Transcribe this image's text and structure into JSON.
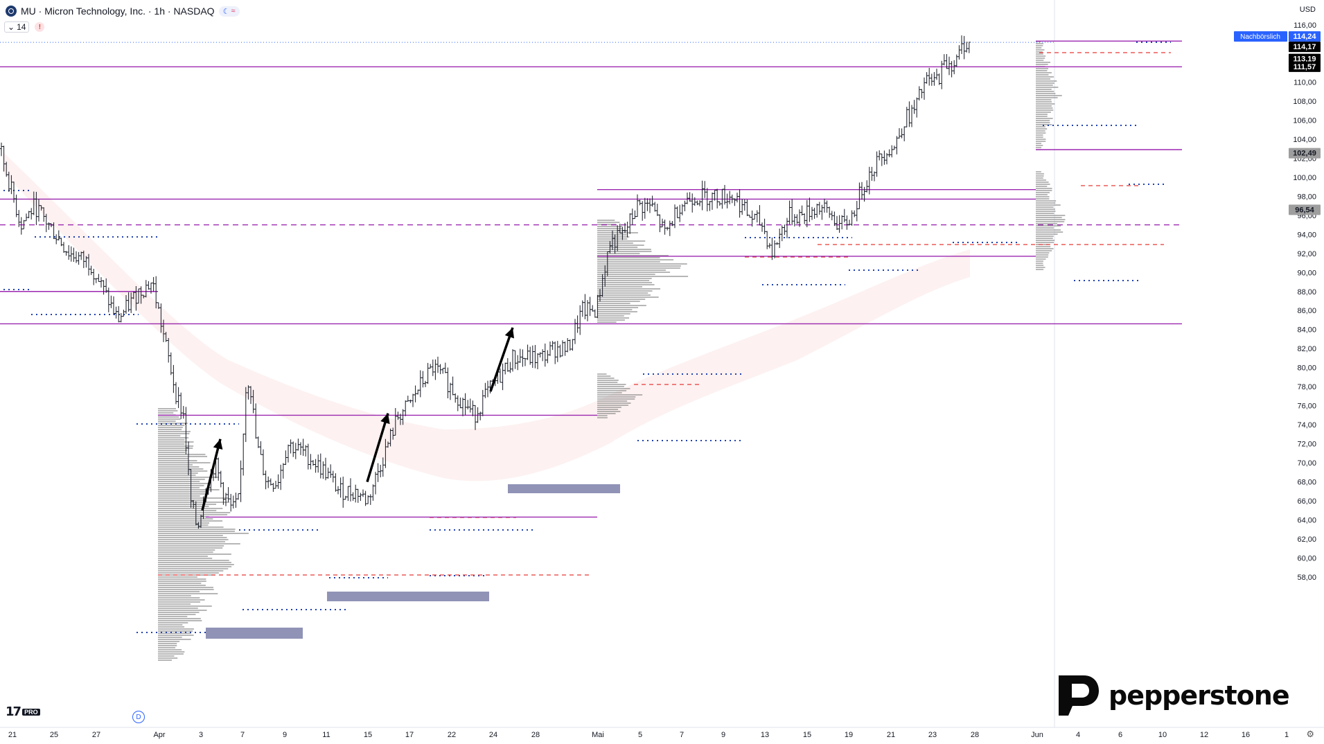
{
  "header": {
    "symbol": "MU",
    "title": "MU · Micron Technology, Inc. · 1h · NASDAQ",
    "indicator_count": "14"
  },
  "currency": "USD",
  "branding": {
    "pepperstone": "pepperstone",
    "tv_pro": "PRO",
    "badge": "D"
  },
  "price_labels": {
    "extended": {
      "text": "Nachbörslich",
      "value": "114,24",
      "color": "#2962ff"
    },
    "last": {
      "value": "114,17"
    },
    "last2": {
      "value": "113,19"
    },
    "level": {
      "value": "111,57"
    },
    "gray1": {
      "value": "102,49"
    },
    "gray2": {
      "value": "96,54"
    }
  },
  "chart_data": {
    "type": "candlestick",
    "timeframe": "1h",
    "y_ticks": [
      "58,00",
      "60,00",
      "62,00",
      "64,00",
      "66,00",
      "68,00",
      "70,00",
      "72,00",
      "74,00",
      "76,00",
      "78,00",
      "80,00",
      "82,00",
      "84,00",
      "86,00",
      "88,00",
      "90,00",
      "92,00",
      "94,00",
      "96,00",
      "98,00",
      "100,00",
      "102,00",
      "104,00",
      "106,00",
      "108,00",
      "110,00",
      "112,00",
      "114,00",
      "116,00"
    ],
    "ylim": [
      56.5,
      117.0
    ],
    "x_ticks": [
      "21",
      "25",
      "27",
      "Apr",
      "3",
      "7",
      "9",
      "11",
      "15",
      "17",
      "22",
      "24",
      "28",
      "Mai",
      "5",
      "7",
      "9",
      "13",
      "15",
      "19",
      "21",
      "23",
      "28",
      "Jun",
      "4",
      "6",
      "10",
      "12",
      "16",
      "1"
    ],
    "price_path": [
      [
        0,
        103.0
      ],
      [
        30,
        95
      ],
      [
        50,
        97
      ],
      [
        70,
        95
      ],
      [
        100,
        92
      ],
      [
        130,
        91
      ],
      [
        150,
        88
      ],
      [
        170,
        85
      ],
      [
        200,
        88
      ],
      [
        220,
        89
      ],
      [
        240,
        82
      ],
      [
        255,
        77
      ],
      [
        265,
        75
      ],
      [
        275,
        66
      ],
      [
        285,
        63
      ],
      [
        295,
        67
      ],
      [
        310,
        70
      ],
      [
        322,
        67
      ],
      [
        335,
        65
      ],
      [
        345,
        66
      ],
      [
        355,
        78
      ],
      [
        360,
        79
      ],
      [
        370,
        72
      ],
      [
        385,
        68
      ],
      [
        400,
        68
      ],
      [
        415,
        72
      ],
      [
        440,
        71
      ],
      [
        470,
        69
      ],
      [
        490,
        67
      ],
      [
        515,
        67
      ],
      [
        530,
        66
      ],
      [
        545,
        69
      ],
      [
        560,
        72
      ],
      [
        575,
        75
      ],
      [
        590,
        76
      ],
      [
        605,
        78
      ],
      [
        625,
        80
      ],
      [
        640,
        79
      ],
      [
        660,
        77
      ],
      [
        685,
        75
      ],
      [
        700,
        77
      ],
      [
        720,
        79
      ],
      [
        740,
        81
      ],
      [
        760,
        81
      ],
      [
        780,
        81
      ],
      [
        800,
        82
      ],
      [
        820,
        82
      ],
      [
        840,
        86
      ],
      [
        860,
        86
      ],
      [
        880,
        93
      ],
      [
        900,
        94
      ],
      [
        920,
        97
      ],
      [
        940,
        97
      ],
      [
        960,
        94
      ],
      [
        980,
        97
      ],
      [
        1000,
        98
      ],
      [
        1020,
        98
      ],
      [
        1040,
        98
      ],
      [
        1060,
        98
      ],
      [
        1080,
        96
      ],
      [
        1100,
        95
      ],
      [
        1115,
        92
      ],
      [
        1125,
        94
      ],
      [
        1140,
        96
      ],
      [
        1160,
        96
      ],
      [
        1180,
        97
      ],
      [
        1200,
        96
      ],
      [
        1210,
        95
      ],
      [
        1220,
        95
      ],
      [
        1230,
        96
      ],
      [
        1245,
        99
      ],
      [
        1260,
        101
      ],
      [
        1280,
        103
      ],
      [
        1290,
        103
      ],
      [
        1305,
        106
      ],
      [
        1320,
        107
      ],
      [
        1335,
        110
      ],
      [
        1350,
        110
      ],
      [
        1365,
        112
      ],
      [
        1380,
        112
      ],
      [
        1390,
        114
      ],
      [
        1400,
        114
      ]
    ],
    "horizontal_levels": [
      {
        "price": 114.3,
        "style": "solid",
        "color": "#9c27b0"
      },
      {
        "price": 111.6,
        "style": "solid",
        "color": "#9c27b0"
      },
      {
        "price": 102.9,
        "style": "solid",
        "color": "#9c27b0"
      },
      {
        "price": 98.7,
        "style": "solid",
        "color": "#9c27b0"
      },
      {
        "price": 97.7,
        "style": "solid",
        "color": "#9c27b0"
      },
      {
        "price": 95.0,
        "style": "dashed",
        "color": "#9c27b0"
      },
      {
        "price": 91.7,
        "style": "solid",
        "color": "#9c27b0"
      },
      {
        "price": 88.0,
        "style": "solid",
        "color": "#9c27b0"
      },
      {
        "price": 84.6,
        "style": "solid",
        "color": "#9c27b0"
      },
      {
        "price": 75.0,
        "style": "solid",
        "color": "#9c27b0"
      },
      {
        "price": 64.3,
        "style": "solid",
        "color": "#9c27b0"
      }
    ],
    "arrows": [
      {
        "from": [
          292,
          65
        ],
        "to": [
          318,
          72.5
        ]
      },
      {
        "from": [
          530,
          68
        ],
        "to": [
          560,
          75.2
        ]
      },
      {
        "from": [
          708,
          77.5
        ],
        "to": [
          740,
          84.2
        ]
      }
    ]
  },
  "colors": {
    "level": "#9c27b0",
    "poc": "#e53935",
    "va": "#1e40af",
    "profile": "#8a8a8a",
    "zone": "#6b6f9e"
  }
}
